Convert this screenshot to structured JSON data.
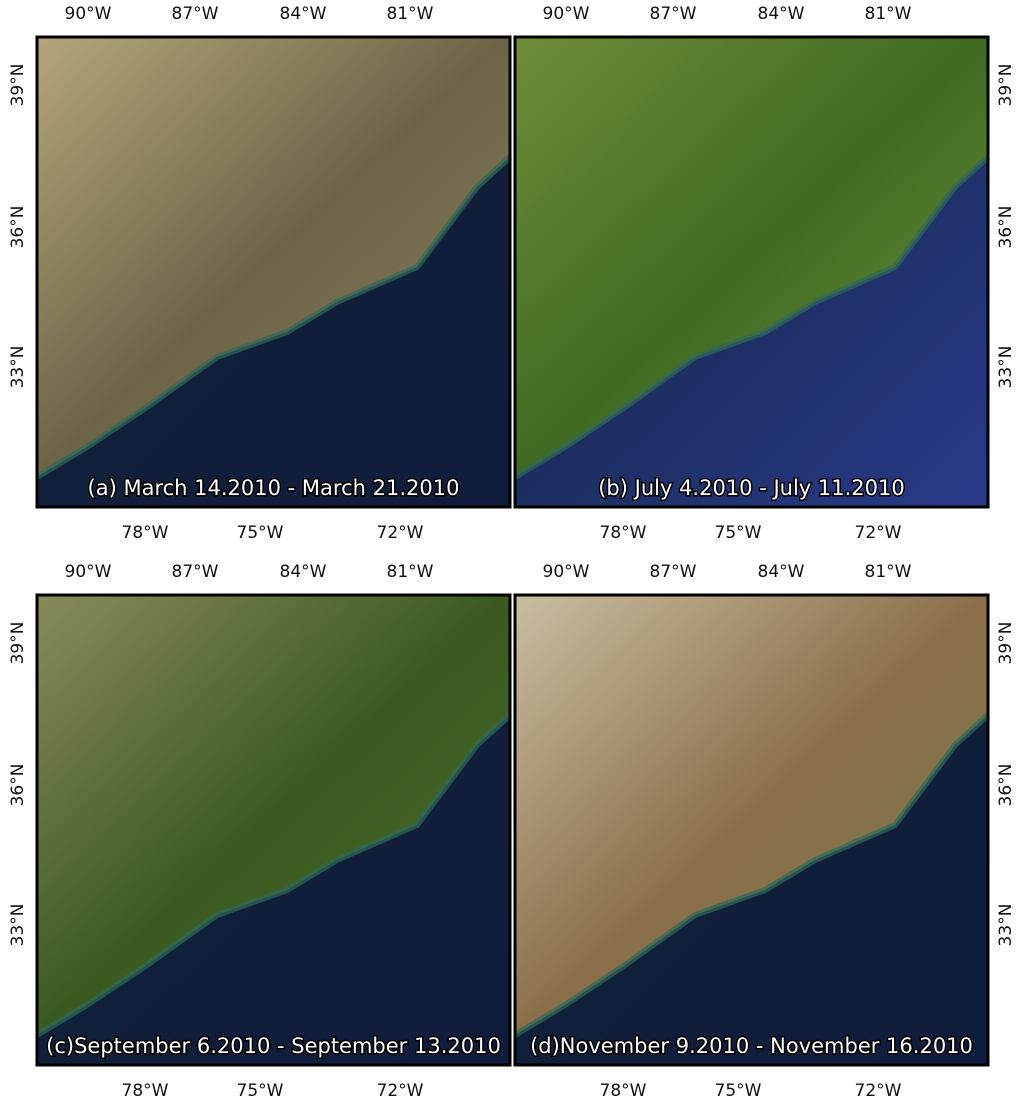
{
  "panels": [
    {
      "caption": "(a) March 14.2010 - March 21.2010",
      "top_labels": [
        "90°W",
        "87°W",
        "84°W",
        "81°W"
      ],
      "bottom_labels": [
        "78°W",
        "75°W",
        "72°W"
      ],
      "side_labels": [
        "39°N",
        "36°N",
        "33°N"
      ]
    },
    {
      "caption": "(b) July 4.2010 - July 11.2010",
      "top_labels": [
        "90°W",
        "87°W",
        "84°W",
        "81°W"
      ],
      "bottom_labels": [
        "78°W",
        "75°W",
        "72°W"
      ],
      "side_labels": [
        "39°N",
        "36°N",
        "33°N"
      ]
    },
    {
      "caption": "(c)September 6.2010 - September 13.2010",
      "top_labels": [
        "90°W",
        "87°W",
        "84°W",
        "81°W"
      ],
      "bottom_labels": [
        "78°W",
        "75°W",
        "72°W"
      ],
      "side_labels": [
        "39°N",
        "36°N",
        "33°N"
      ]
    },
    {
      "caption": "(d)November 9.2010 - November 16.2010",
      "top_labels": [
        "90°W",
        "87°W",
        "84°W",
        "81°W"
      ],
      "bottom_labels": [
        "78°W",
        "75°W",
        "72°W"
      ],
      "side_labels": [
        "39°N",
        "36°N",
        "33°N"
      ]
    }
  ]
}
